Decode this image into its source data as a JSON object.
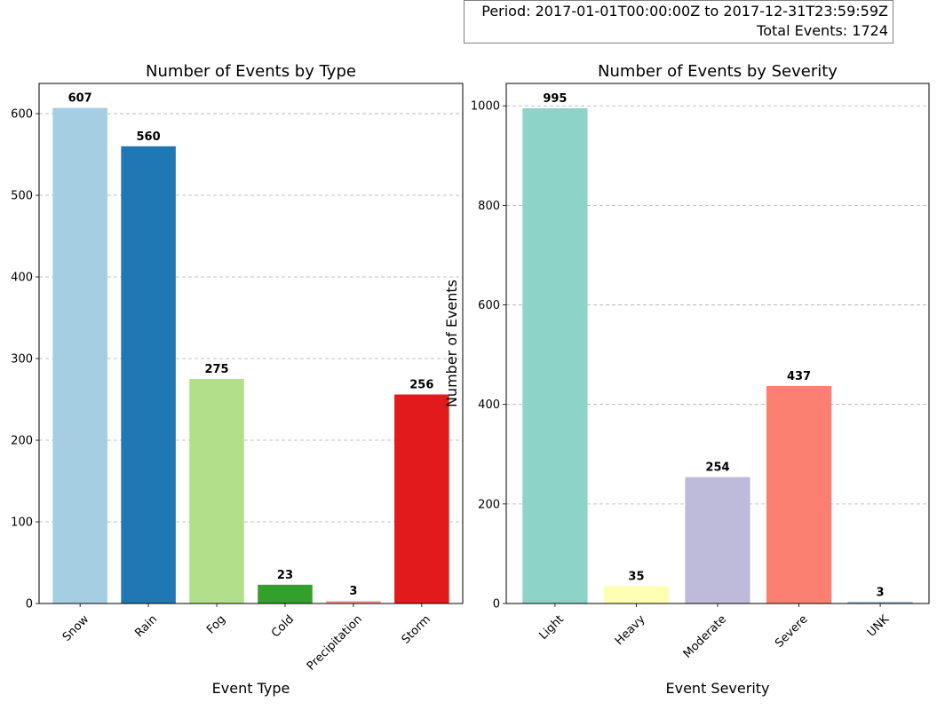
{
  "summary": {
    "period": "Period: 2017-01-01T00:00:00Z to 2017-12-31T23:59:59Z",
    "total": "Total Events: 1724"
  },
  "chart_data": [
    {
      "type": "bar",
      "title": "Number of Events by Type",
      "xlabel": "Event Type",
      "ylabel": "",
      "categories": [
        "Snow",
        "Rain",
        "Fog",
        "Cold",
        "Precipitation",
        "Storm"
      ],
      "values": [
        607,
        560,
        275,
        23,
        3,
        256
      ],
      "colors": [
        "#a6cee3",
        "#1f78b4",
        "#b2df8a",
        "#33a02c",
        "#fb9a99",
        "#e31a1c"
      ],
      "ylim": [
        0,
        637
      ],
      "yticks": [
        0,
        100,
        200,
        300,
        400,
        500,
        600
      ],
      "grid": "y-dashed"
    },
    {
      "type": "bar",
      "title": "Number of Events by Severity",
      "xlabel": "Event Severity",
      "ylabel": "Number of Events",
      "categories": [
        "Light",
        "Heavy",
        "Moderate",
        "Severe",
        "UNK"
      ],
      "values": [
        995,
        35,
        254,
        437,
        3
      ],
      "colors": [
        "#8dd3c7",
        "#ffffb3",
        "#bebada",
        "#fb8072",
        "#80b1d3"
      ],
      "ylim": [
        0,
        1045
      ],
      "yticks": [
        0,
        200,
        400,
        600,
        800,
        1000
      ],
      "grid": "y-dashed"
    }
  ]
}
